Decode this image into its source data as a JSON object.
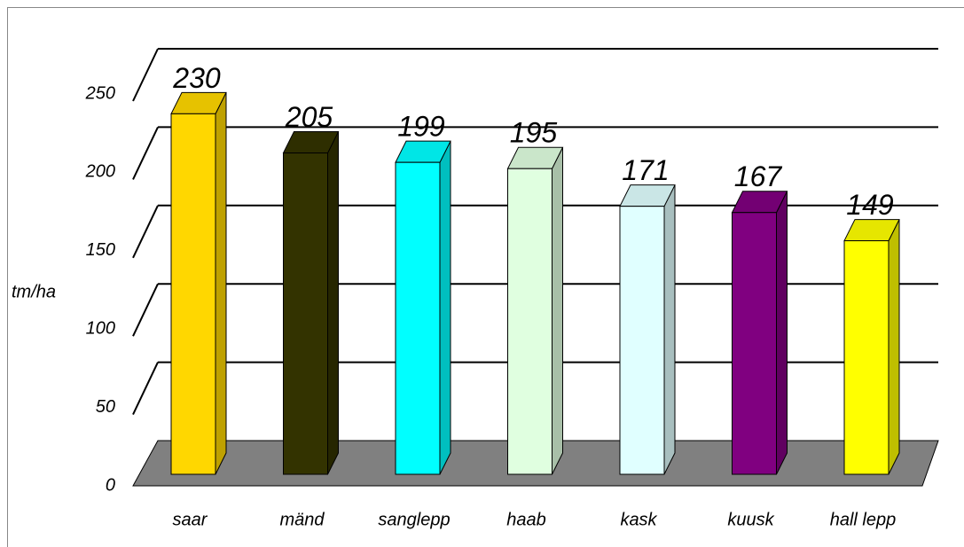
{
  "chart_data": {
    "type": "bar3d",
    "ylabel": "tm/ha",
    "categories": [
      "saar",
      "mänd",
      "sanglepp",
      "haab",
      "kask",
      "kuusk",
      "hall lepp"
    ],
    "values": [
      230,
      205,
      199,
      195,
      171,
      167,
      149
    ],
    "colors": [
      "#ffd700",
      "#333300",
      "#00ffff",
      "#e0ffe0",
      "#e0ffff",
      "#800080",
      "#ffff00"
    ],
    "ylim": [
      0,
      250
    ],
    "yticks": [
      0,
      50,
      100,
      150,
      200,
      250
    ],
    "grid": true
  }
}
